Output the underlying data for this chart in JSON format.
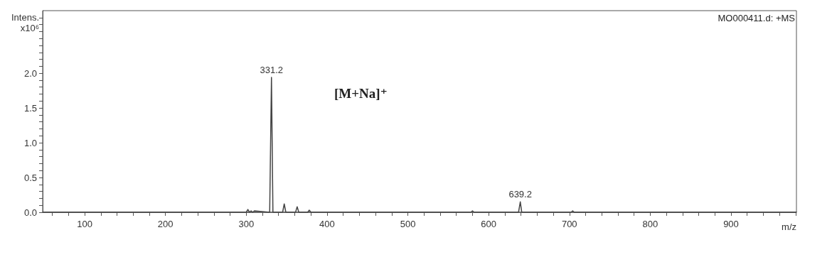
{
  "chart_data": {
    "type": "line",
    "ylabel": "Intens.\nx10⁶",
    "xlabel": "m/z",
    "annotations": [
      "MO000411.d: +MS",
      "[M+Na]⁺",
      {
        "text": "331.2",
        "x": 331.2,
        "y": 1.94
      },
      {
        "text": "639.2",
        "x": 639.2,
        "y": 0.15
      }
    ],
    "x": [
      48,
      298,
      300,
      302,
      304,
      306,
      308,
      310,
      329,
      331.2,
      333,
      345,
      347,
      349,
      361,
      363,
      365,
      376,
      378,
      380,
      578,
      580,
      582,
      637,
      639.2,
      641,
      702,
      704,
      706,
      981
    ],
    "series": [
      {
        "color": "#444444",
        "values": [
          0,
          0,
          0,
          0.04,
          0,
          0.02,
          0,
          0.02,
          0,
          1.94,
          0,
          0,
          0.12,
          0,
          0,
          0.08,
          0,
          0,
          0.03,
          0,
          0,
          0.02,
          0,
          0,
          0.15,
          0,
          0,
          0.02,
          0,
          0
        ]
      }
    ],
    "xlim": [
      48,
      981
    ],
    "xticks": [
      {
        "value": 60,
        "label": null
      },
      {
        "value": 80,
        "label": null
      },
      100,
      {
        "value": 120,
        "label": null
      },
      {
        "value": 140,
        "label": null
      },
      {
        "value": 160,
        "label": null
      },
      {
        "value": 180,
        "label": null
      },
      200,
      {
        "value": 220,
        "label": null
      },
      {
        "value": 240,
        "label": null
      },
      {
        "value": 260,
        "label": null
      },
      {
        "value": 280,
        "label": null
      },
      300,
      {
        "value": 320,
        "label": null
      },
      {
        "value": 340,
        "label": null
      },
      {
        "value": 360,
        "label": null
      },
      {
        "value": 380,
        "label": null
      },
      400,
      {
        "value": 420,
        "label": null
      },
      {
        "value": 440,
        "label": null
      },
      {
        "value": 460,
        "label": null
      },
      {
        "value": 480,
        "label": null
      },
      500,
      {
        "value": 520,
        "label": null
      },
      {
        "value": 540,
        "label": null
      },
      {
        "value": 560,
        "label": null
      },
      {
        "value": 580,
        "label": null
      },
      600,
      {
        "value": 620,
        "label": null
      },
      {
        "value": 640,
        "label": null
      },
      {
        "value": 660,
        "label": null
      },
      {
        "value": 680,
        "label": null
      },
      700,
      {
        "value": 720,
        "label": null
      },
      {
        "value": 740,
        "label": null
      },
      {
        "value": 760,
        "label": null
      },
      {
        "value": 780,
        "label": null
      },
      800,
      {
        "value": 820,
        "label": null
      },
      {
        "value": 840,
        "label": null
      },
      {
        "value": 860,
        "label": null
      },
      {
        "value": 880,
        "label": null
      },
      900,
      {
        "value": 920,
        "label": null
      },
      {
        "value": 940,
        "label": null
      },
      {
        "value": 960,
        "label": null
      },
      {
        "value": 980,
        "label": null
      }
    ],
    "ylim": [
      0,
      2.9
    ],
    "yticks": [
      {
        "value": 0,
        "label": "0.0"
      },
      {
        "value": 0.1,
        "label": null
      },
      {
        "value": 0.2,
        "label": null
      },
      {
        "value": 0.3,
        "label": null
      },
      {
        "value": 0.4,
        "label": null
      },
      0.5,
      {
        "value": 0.6,
        "label": null
      },
      {
        "value": 0.7,
        "label": null
      },
      {
        "value": 0.8,
        "label": null
      },
      {
        "value": 0.9,
        "label": null
      },
      {
        "value": 1,
        "label": "1.0"
      },
      {
        "value": 1.1,
        "label": null
      },
      {
        "value": 1.2,
        "label": null
      },
      {
        "value": 1.3,
        "label": null
      },
      {
        "value": 1.4,
        "label": null
      },
      1.5,
      {
        "value": 1.6,
        "label": null
      },
      {
        "value": 1.7,
        "label": null
      },
      {
        "value": 1.8,
        "label": null
      },
      {
        "value": 1.9,
        "label": null
      },
      {
        "value": 2,
        "label": "2.0"
      },
      {
        "value": 2.1,
        "label": null
      },
      {
        "value": 2.2,
        "label": null
      },
      {
        "value": 2.3,
        "label": null
      },
      {
        "value": 2.4,
        "label": null
      },
      {
        "value": 2.5,
        "label": null
      },
      {
        "value": 2.6,
        "label": null
      },
      {
        "value": 2.7,
        "label": null
      },
      {
        "value": 2.8,
        "label": null
      }
    ],
    "grid": false,
    "marker": "none",
    "line_style": "solid"
  }
}
